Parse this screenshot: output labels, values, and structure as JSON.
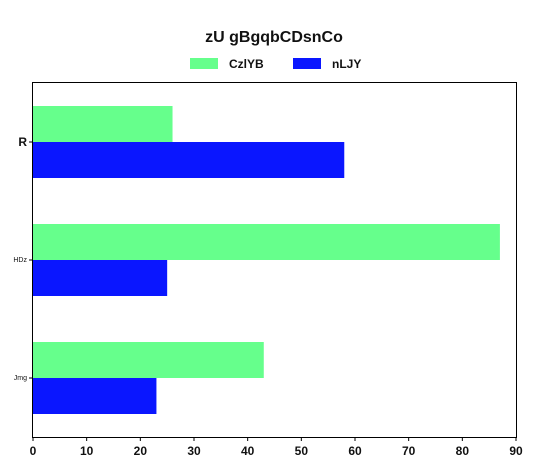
{
  "chart_data": {
    "type": "bar",
    "orientation": "horizontal",
    "title": "zU gBgqbCDsnCo",
    "categories": [
      "R",
      "HDz",
      "Jmg"
    ],
    "series": [
      {
        "name": "CzlYB",
        "color": "#66FF8C",
        "values": [
          26,
          87,
          43
        ]
      },
      {
        "name": "nLJY",
        "color": "#0A16FF",
        "values": [
          58,
          25,
          23
        ]
      }
    ],
    "xlim": [
      0,
      90
    ],
    "xticks": [
      0,
      10,
      20,
      30,
      40,
      50,
      60,
      70,
      80,
      90
    ],
    "xlabel": "",
    "ylabel": "",
    "grid": false,
    "legend_position": "top-center"
  }
}
